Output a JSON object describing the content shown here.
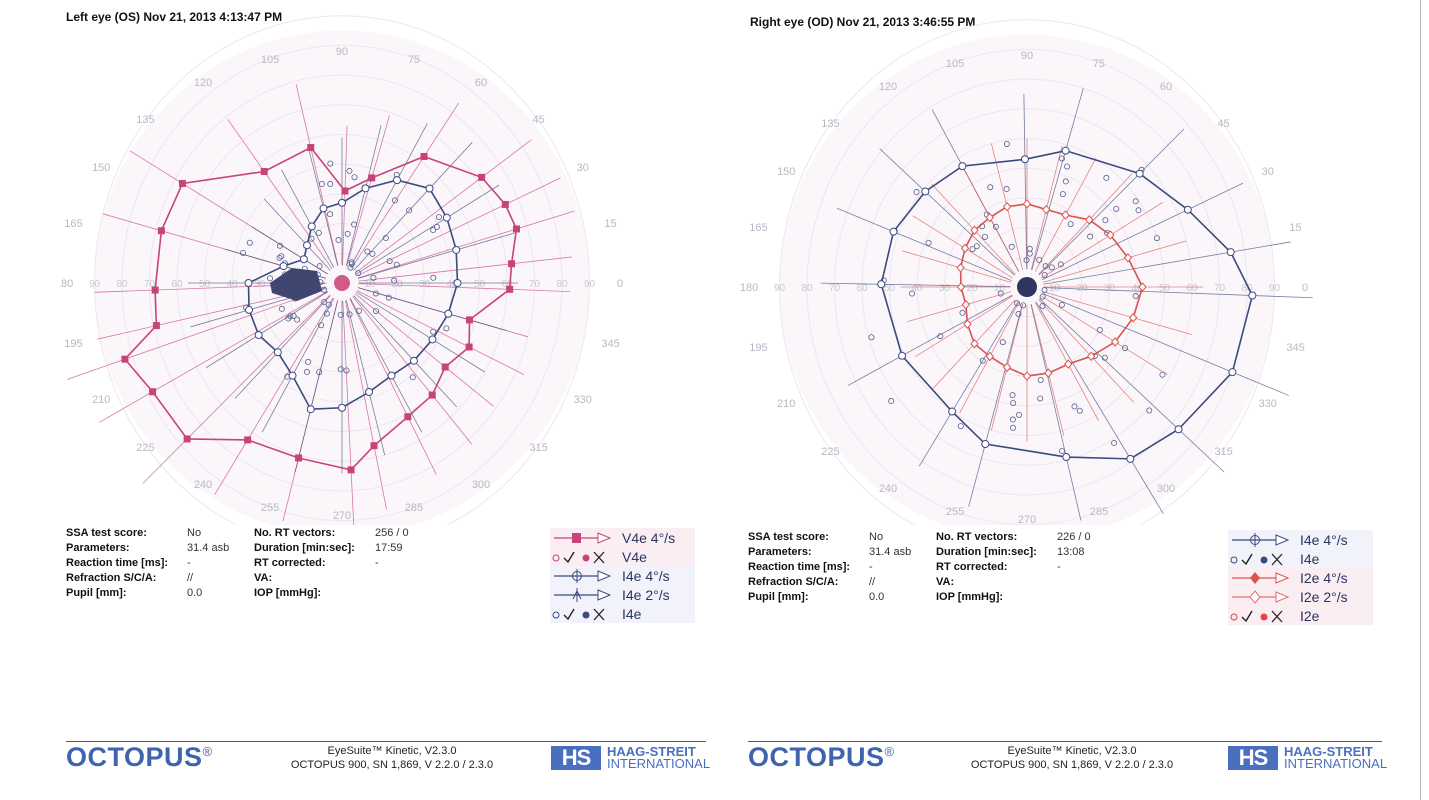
{
  "left": {
    "title": "Left eye (OS) Nov 21, 2013 4:13:47 PM",
    "info": [
      {
        "label": "SSA test score:",
        "value": "No"
      },
      {
        "label": "Parameters:",
        "value": "31.4 asb"
      },
      {
        "label": "Reaction time [ms]:",
        "value": "-"
      },
      {
        "label": "Refraction S/C/A:",
        "value": "//"
      },
      {
        "label": "Pupil [mm]:",
        "value": "0.0"
      }
    ],
    "info2": [
      {
        "label": "No. RT vectors:",
        "value": "256 / 0"
      },
      {
        "label": "Duration [min:sec]:",
        "value": "17:59"
      },
      {
        "label": "RT corrected:",
        "value": "-"
      },
      {
        "label": "VA:",
        "value": ""
      },
      {
        "label": "IOP [mmHg]:",
        "value": ""
      }
    ],
    "legend": [
      {
        "kind": "isopter",
        "marker": "square",
        "color": "#c8437a",
        "text": "V4e  4°/s",
        "bg": "pink"
      },
      {
        "kind": "spots",
        "color": "#c8437a",
        "text": "V4e",
        "bg": "pink"
      },
      {
        "kind": "isopter",
        "marker": "circle-cross",
        "color": "#3b4a7f",
        "text": "I4e  4°/s",
        "bg": "blue"
      },
      {
        "kind": "isopter",
        "marker": "tick",
        "color": "#3b4a7f",
        "text": "I4e  2°/s",
        "bg": "blue"
      },
      {
        "kind": "spots",
        "color": "#3b4a7f",
        "text": "I4e",
        "bg": "blue"
      }
    ],
    "chart": {
      "angle_labels": [
        "0",
        "15",
        "30",
        "45",
        "60",
        "75",
        "90",
        "105",
        "120",
        "135",
        "150",
        "165",
        "180",
        "195",
        "210",
        "225",
        "240",
        "255",
        "270",
        "285",
        "300",
        "315",
        "330",
        "345"
      ],
      "ring_labels": [
        "10",
        "20",
        "30",
        "40",
        "50",
        "60",
        "70",
        "80",
        "90"
      ],
      "isopters": [
        {
          "name": "V4e 4°/s",
          "color": "#c8437a",
          "marker": "square",
          "points": [
            [
              6,
              62
            ],
            [
              16,
              66
            ],
            [
              24,
              65
            ],
            [
              35,
              62
            ],
            [
              55,
              52
            ],
            [
              73,
              37
            ],
            [
              88,
              31
            ],
            [
              104,
              47
            ],
            [
              127,
              47
            ],
            [
              150,
              67
            ],
            [
              165,
              68
            ],
            [
              182,
              68
            ],
            [
              192,
              69
            ],
            [
              198,
              83
            ],
            [
              208,
              78
            ],
            [
              223,
              77
            ],
            [
              237,
              63
            ],
            [
              255,
              61
            ],
            [
              273,
              63
            ],
            [
              282,
              56
            ],
            [
              298,
              51
            ],
            [
              311,
              50
            ],
            [
              323,
              47
            ],
            [
              335,
              51
            ],
            [
              345,
              48
            ],
            [
              358,
              61
            ]
          ]
        },
        {
          "name": "I4e 4°/s",
          "color": "#3b4a7f",
          "marker": "circle-cross",
          "points": [
            [
              0,
              42
            ],
            [
              15,
              43
            ],
            [
              30,
              44
            ],
            [
              45,
              45
            ],
            [
              60,
              40
            ],
            [
              75,
              33
            ],
            [
              90,
              27
            ],
            [
              105,
              26
            ],
            [
              120,
              22
            ],
            [
              135,
              18
            ],
            [
              150,
              16
            ],
            [
              165,
              22
            ],
            [
              180,
              34
            ],
            [
              195,
              35
            ],
            [
              210,
              35
            ],
            [
              225,
              33
            ],
            [
              240,
              36
            ],
            [
              255,
              44
            ],
            [
              270,
              42
            ],
            [
              285,
              38
            ],
            [
              300,
              36
            ],
            [
              315,
              37
            ],
            [
              330,
              38
            ],
            [
              345,
              40
            ]
          ]
        }
      ]
    }
  },
  "right": {
    "title": "Right eye (OD) Nov 21, 2013 3:46:55 PM",
    "info": [
      {
        "label": "SSA test score:",
        "value": "No"
      },
      {
        "label": "Parameters:",
        "value": "31.4 asb"
      },
      {
        "label": "Reaction time [ms]:",
        "value": "-"
      },
      {
        "label": "Refraction S/C/A:",
        "value": "//"
      },
      {
        "label": "Pupil [mm]:",
        "value": "0.0"
      }
    ],
    "info2": [
      {
        "label": "No. RT vectors:",
        "value": "226 / 0"
      },
      {
        "label": "Duration [min:sec]:",
        "value": "13:08"
      },
      {
        "label": "RT corrected:",
        "value": "-"
      },
      {
        "label": "VA:",
        "value": ""
      },
      {
        "label": "IOP [mmHg]:",
        "value": ""
      }
    ],
    "legend": [
      {
        "kind": "isopter",
        "marker": "circle-cross",
        "color": "#3b4a7f",
        "text": "I4e  4°/s",
        "bg": "blue"
      },
      {
        "kind": "spots",
        "color": "#3b4a7f",
        "text": "I4e",
        "bg": "blue"
      },
      {
        "kind": "isopter",
        "marker": "diamond",
        "color": "#d9534f",
        "text": "I2e  4°/s",
        "bg": "pink"
      },
      {
        "kind": "isopter",
        "marker": "diamond-open",
        "color": "#e07070",
        "text": "I2e  2°/s",
        "bg": "pink"
      },
      {
        "kind": "spots",
        "color": "#e04848",
        "text": "I2e",
        "bg": "pink"
      }
    ],
    "chart": {
      "angle_labels": [
        "0",
        "15",
        "30",
        "45",
        "60",
        "75",
        "90",
        "105",
        "120",
        "135",
        "150",
        "165",
        "180",
        "195",
        "210",
        "225",
        "240",
        "255",
        "270",
        "285",
        "300",
        "315",
        "330",
        "345"
      ],
      "ring_labels": [
        "10",
        "20",
        "30",
        "40",
        "50",
        "60",
        "70",
        "80",
        "90"
      ],
      "isopters": [
        {
          "name": "I4e 4°/s",
          "color": "#3b4a7f",
          "marker": "circle-cross",
          "points": [
            [
              9,
              75
            ],
            [
              24,
              64
            ],
            [
              43,
              56
            ],
            [
              73,
              48
            ],
            [
              91,
              43
            ],
            [
              120,
              47
            ],
            [
              139,
              49
            ],
            [
              159,
              52
            ],
            [
              179,
              53
            ],
            [
              207,
              51
            ],
            [
              237,
              50
            ],
            [
              254,
              55
            ],
            [
              284,
              59
            ],
            [
              303,
              69
            ],
            [
              319,
              73
            ],
            [
              339,
              80
            ],
            [
              358,
              82
            ]
          ]
        },
        {
          "name": "I2e 4°/s",
          "color": "#d9534f",
          "marker": "diamond-open",
          "points": [
            [
              0,
              42
            ],
            [
              15,
              38
            ],
            [
              30,
              35
            ],
            [
              45,
              32
            ],
            [
              60,
              28
            ],
            [
              75,
              27
            ],
            [
              90,
              28
            ],
            [
              105,
              28
            ],
            [
              120,
              27
            ],
            [
              135,
              27
            ],
            [
              150,
              26
            ],
            [
              165,
              25
            ],
            [
              180,
              24
            ],
            [
              195,
              23
            ],
            [
              210,
              25
            ],
            [
              225,
              27
            ],
            [
              240,
              27
            ],
            [
              255,
              28
            ],
            [
              270,
              30
            ],
            [
              285,
              30
            ],
            [
              300,
              30
            ],
            [
              315,
              33
            ],
            [
              330,
              37
            ],
            [
              345,
              40
            ]
          ]
        }
      ]
    }
  },
  "footer": {
    "brand": "OCTOPUS",
    "registered": "®",
    "software": "EyeSuite™ Kinetic, V2.3.0",
    "device": "OCTOPUS 900, SN 1,869, V 2.2.0  / 2.3.0",
    "logo_mark": "HS",
    "company_line1": "HAAG-STREIT",
    "company_line2": "INTERNATIONAL"
  }
}
